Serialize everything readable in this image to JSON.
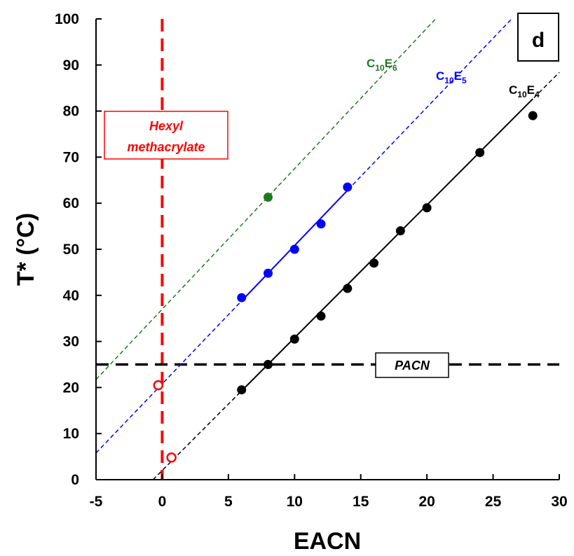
{
  "chart_data": {
    "type": "scatter",
    "panel_label": "d",
    "xlabel": "EACN",
    "ylabel": "T* (°C)",
    "xlim": [
      -5,
      30
    ],
    "ylim": [
      0,
      100
    ],
    "xticks": [
      "-5",
      "0",
      "5",
      "10",
      "15",
      "20",
      "25",
      "30"
    ],
    "yticks": [
      "0",
      "10",
      "20",
      "30",
      "40",
      "50",
      "60",
      "70",
      "80",
      "90",
      "100"
    ],
    "series": [
      {
        "name": "C10E6",
        "label_main": "C",
        "label_sub1": "10",
        "label_mid": "E",
        "label_sub2": "6",
        "color": "#1f7a1f",
        "points": [
          [
            8,
            61.3
          ]
        ],
        "fit": {
          "slope": 3.05,
          "intercept": 37.0,
          "solid_range": null
        }
      },
      {
        "name": "C10E5",
        "label_main": "C",
        "label_sub1": "10",
        "label_mid": "E",
        "label_sub2": "5",
        "color": "#0000ff",
        "points": [
          [
            6,
            39.5
          ],
          [
            8,
            44.8
          ],
          [
            10,
            50.0
          ],
          [
            12,
            55.5
          ],
          [
            14,
            63.5
          ]
        ],
        "fit": {
          "slope": 3.0,
          "intercept": 20.8,
          "solid_range": [
            6,
            14
          ]
        }
      },
      {
        "name": "C10E4",
        "label_main": "C",
        "label_sub1": "10",
        "label_mid": "E",
        "label_sub2": "4",
        "color": "#000000",
        "points": [
          [
            6,
            19.5
          ],
          [
            8,
            25.0
          ],
          [
            10,
            30.5
          ],
          [
            12,
            35.5
          ],
          [
            14,
            41.5
          ],
          [
            16,
            47.0
          ],
          [
            18,
            54.0
          ],
          [
            20,
            59.0
          ],
          [
            24,
            71.0
          ],
          [
            28,
            79.0
          ]
        ],
        "fit": {
          "slope": 2.88,
          "intercept": 2.0,
          "solid_range": [
            6,
            28
          ]
        }
      }
    ],
    "open_points": [
      [
        -0.3,
        20.5
      ],
      [
        0.7,
        4.8
      ]
    ],
    "open_point_color": "#ff0000",
    "reference_lines": [
      {
        "orientation": "vertical",
        "value": 0,
        "label": "Hexyl methacrylate",
        "label_line1": "Hexyl",
        "label_line2": "methacrylate",
        "color": "#ff0000"
      },
      {
        "orientation": "horizontal",
        "value": 25,
        "label": "PACN",
        "color": "#000000"
      }
    ]
  }
}
